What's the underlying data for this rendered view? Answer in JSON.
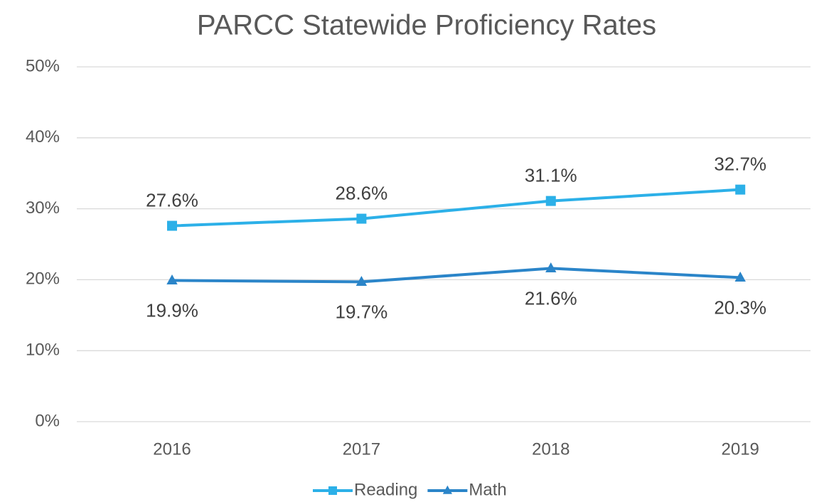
{
  "chart_data": {
    "type": "line",
    "title": "PARCC Statewide Proficiency Rates",
    "categories": [
      "2016",
      "2017",
      "2018",
      "2019"
    ],
    "series": [
      {
        "name": "Reading",
        "color": "#2cb0e8",
        "marker": "square",
        "values": [
          27.6,
          28.6,
          31.1,
          32.7
        ],
        "value_labels": [
          "27.6%",
          "28.6%",
          "31.1%",
          "32.7%"
        ],
        "label_position": "above"
      },
      {
        "name": "Math",
        "color": "#2b85c9",
        "marker": "triangle",
        "values": [
          19.9,
          19.7,
          21.6,
          20.3
        ],
        "value_labels": [
          "19.9%",
          "19.7%",
          "21.6%",
          "20.3%"
        ],
        "label_position": "below"
      }
    ],
    "ylim": [
      0,
      50
    ],
    "yticks": [
      {
        "value": 0,
        "label": "0%"
      },
      {
        "value": 10,
        "label": "10%"
      },
      {
        "value": 20,
        "label": "20%"
      },
      {
        "value": 30,
        "label": "30%"
      },
      {
        "value": 40,
        "label": "40%"
      },
      {
        "value": 50,
        "label": "50%"
      }
    ],
    "grid": true,
    "legend": "bottom"
  }
}
